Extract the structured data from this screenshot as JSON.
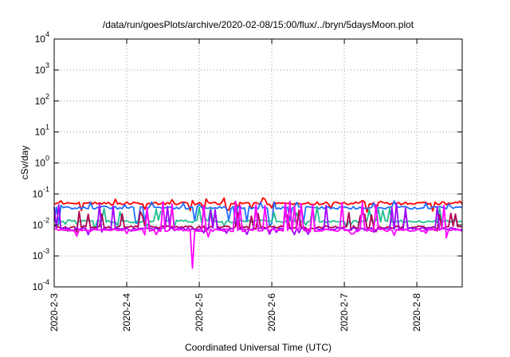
{
  "chart_data": {
    "type": "line",
    "title": "/data/run/goesPlots/archive/2020-02-08/15:00/flux/../bryn/5daysMoon.plot",
    "xlabel": "Coordinated Universal Time (UTC)",
    "ylabel": "cSv/day",
    "yscale": "log",
    "ylim": [
      0.0001,
      10000
    ],
    "xlim": [
      "2020-02-03 00:00",
      "2020-02-08 15:00"
    ],
    "grid": true,
    "x_ticks": [
      "2020-2-3",
      "2020-2-4",
      "2020-2-5",
      "2020-2-6",
      "2020-2-7",
      "2020-2-8"
    ],
    "y_ticks": [
      {
        "base": "10",
        "exp": "-4"
      },
      {
        "base": "10",
        "exp": "-3"
      },
      {
        "base": "10",
        "exp": "-2"
      },
      {
        "base": "10",
        "exp": "-1"
      },
      {
        "base": "10",
        "exp": "0"
      },
      {
        "base": "10",
        "exp": "1"
      },
      {
        "base": "10",
        "exp": "2"
      },
      {
        "base": "10",
        "exp": "3"
      },
      {
        "base": "10",
        "exp": "4"
      }
    ],
    "series": [
      {
        "color": "#ff0000",
        "base": 0.05,
        "spike_low": 0.03,
        "spike_high": 0.075
      },
      {
        "color": "#1f6fff",
        "base": 0.036,
        "spike_low": 0.012,
        "spike_high": 0.06
      },
      {
        "color": "#20c090",
        "base": 0.013,
        "spike_low": 0.009,
        "spike_high": 0.04
      },
      {
        "color": "#b00050",
        "base": 0.0085,
        "spike_low": 0.007,
        "spike_high": 0.03
      },
      {
        "color": "#a000ff",
        "base": 0.0075,
        "spike_low": 0.006,
        "spike_high": 0.05
      },
      {
        "color": "#ff00ff",
        "base": 0.0068,
        "spike_low": 0.0045,
        "spike_high": 0.06,
        "dip_at": "2020-02-04 22:00",
        "dip_value": 0.0004
      }
    ]
  }
}
